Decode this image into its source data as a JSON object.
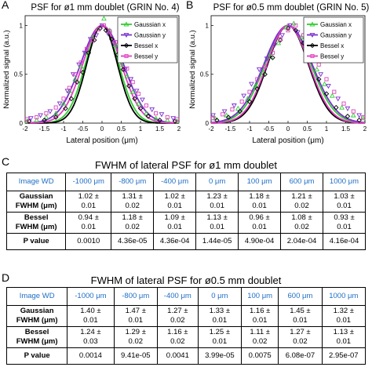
{
  "panels": {
    "a": "A",
    "b": "B",
    "c": "C",
    "d": "D"
  },
  "colors": {
    "gaussian_x": "#33cc33",
    "gaussian_y": "#7b2fd0",
    "bessel_x": "#000000",
    "bessel_y": "#e040c0",
    "header_blue": "#1f6fc5"
  },
  "chart_data": [
    {
      "type": "scatter",
      "title": "PSF for ø1 mm doublet (GRIN No. 4)",
      "xlabel": "Lateral position (μm)",
      "ylabel": "Normalized signal (a.u.)",
      "xlim": [
        -2,
        2
      ],
      "ylim": [
        0,
        1.1
      ],
      "xticks": [
        "-2",
        "-1.5",
        "-1",
        "-0.5",
        "0",
        "0.5",
        "1",
        "1.5",
        "2"
      ],
      "yticks": [
        "0",
        "0.5",
        "1"
      ],
      "fwhm": {
        "gaussian_x": 1.02,
        "gaussian_y": 1.31,
        "bessel_x": 0.94,
        "bessel_y": 1.18
      },
      "legend": {
        "placement": "top-right",
        "entries": [
          "Gaussian x",
          "Gaussian y",
          "Bessel x",
          "Bessel y"
        ]
      },
      "series": [
        {
          "name": "Gaussian x",
          "marker": "triangle-up",
          "points": [
            [
              -1.95,
              0.02
            ],
            [
              -1.7,
              0.03
            ],
            [
              -1.45,
              0.06
            ],
            [
              -1.2,
              0.1
            ],
            [
              -1.0,
              0.2
            ],
            [
              -0.85,
              0.33
            ],
            [
              -0.7,
              0.45
            ],
            [
              -0.55,
              0.58
            ],
            [
              -0.4,
              0.72
            ],
            [
              -0.25,
              0.88
            ],
            [
              -0.1,
              0.96
            ],
            [
              0.05,
              1.07
            ],
            [
              0.2,
              0.95
            ],
            [
              0.35,
              0.8
            ],
            [
              0.5,
              0.6
            ],
            [
              0.65,
              0.48
            ],
            [
              0.8,
              0.32
            ],
            [
              0.95,
              0.2
            ],
            [
              1.15,
              0.1
            ],
            [
              1.4,
              0.05
            ],
            [
              1.7,
              0.03
            ],
            [
              1.95,
              0.02
            ]
          ]
        },
        {
          "name": "Gaussian y",
          "marker": "triangle-down",
          "points": [
            [
              -1.85,
              0.05
            ],
            [
              -1.6,
              0.08
            ],
            [
              -1.35,
              0.12
            ],
            [
              -1.1,
              0.2
            ],
            [
              -0.9,
              0.33
            ],
            [
              -0.75,
              0.5
            ],
            [
              -0.6,
              0.6
            ],
            [
              -0.45,
              0.72
            ],
            [
              -0.3,
              0.86
            ],
            [
              -0.15,
              0.9
            ],
            [
              0.0,
              1.0
            ],
            [
              0.15,
              0.92
            ],
            [
              0.3,
              0.82
            ],
            [
              0.45,
              0.7
            ],
            [
              0.6,
              0.55
            ],
            [
              0.75,
              0.45
            ],
            [
              0.9,
              0.33
            ],
            [
              1.05,
              0.24
            ],
            [
              1.3,
              0.14
            ],
            [
              1.55,
              0.09
            ],
            [
              1.85,
              0.05
            ]
          ]
        },
        {
          "name": "Bessel x",
          "marker": "diamond",
          "points": [
            [
              -1.9,
              0.02
            ],
            [
              -1.5,
              0.03
            ],
            [
              -1.2,
              0.06
            ],
            [
              -0.95,
              0.15
            ],
            [
              -0.8,
              0.25
            ],
            [
              -0.65,
              0.42
            ],
            [
              -0.5,
              0.52
            ],
            [
              -0.35,
              0.72
            ],
            [
              -0.2,
              0.85
            ],
            [
              -0.05,
              0.97
            ],
            [
              0.1,
              0.95
            ],
            [
              0.25,
              0.86
            ],
            [
              0.4,
              0.7
            ],
            [
              0.55,
              0.55
            ],
            [
              0.7,
              0.38
            ],
            [
              0.85,
              0.25
            ],
            [
              1.0,
              0.15
            ],
            [
              1.2,
              0.07
            ],
            [
              1.5,
              0.03
            ],
            [
              1.9,
              0.02
            ]
          ]
        },
        {
          "name": "Bessel y",
          "marker": "square",
          "points": [
            [
              -1.95,
              0.04
            ],
            [
              -1.7,
              0.06
            ],
            [
              -1.45,
              0.1
            ],
            [
              -1.2,
              0.16
            ],
            [
              -1.0,
              0.25
            ],
            [
              -0.85,
              0.36
            ],
            [
              -0.7,
              0.5
            ],
            [
              -0.55,
              0.62
            ],
            [
              -0.4,
              0.76
            ],
            [
              -0.25,
              0.85
            ],
            [
              -0.1,
              0.96
            ],
            [
              0.05,
              1.0
            ],
            [
              0.2,
              0.94
            ],
            [
              0.35,
              0.83
            ],
            [
              0.5,
              0.7
            ],
            [
              0.65,
              0.56
            ],
            [
              0.8,
              0.42
            ],
            [
              0.95,
              0.3
            ],
            [
              1.15,
              0.18
            ],
            [
              1.4,
              0.1
            ],
            [
              1.7,
              0.06
            ],
            [
              1.95,
              0.04
            ]
          ]
        }
      ]
    },
    {
      "type": "scatter",
      "title": "PSF for ø0.5 mm doublet (GRIN No. 5)",
      "xlabel": "Lateral position (μm)",
      "ylabel": "Normalized signal (a.u.)",
      "xlim": [
        -2,
        2
      ],
      "ylim": [
        0,
        1.1
      ],
      "xticks": [
        "-2",
        "-1.5",
        "-1",
        "-0.5",
        "0",
        "0.5",
        "1",
        "1.5",
        "2"
      ],
      "yticks": [
        "0",
        "0.5",
        "1"
      ],
      "fwhm": {
        "gaussian_x": 1.4,
        "gaussian_y": 1.47,
        "bessel_x": 1.24,
        "bessel_y": 1.29
      },
      "legend": {
        "placement": "top-right",
        "entries": [
          "Gaussian x",
          "Gaussian y",
          "Bessel x",
          "Bessel y"
        ]
      },
      "series": [
        {
          "name": "Gaussian x",
          "marker": "triangle-up",
          "points": [
            [
              -1.9,
              0.05
            ],
            [
              -1.6,
              0.08
            ],
            [
              -1.3,
              0.15
            ],
            [
              -1.05,
              0.25
            ],
            [
              -0.85,
              0.38
            ],
            [
              -0.65,
              0.52
            ],
            [
              -0.45,
              0.68
            ],
            [
              -0.25,
              0.82
            ],
            [
              -0.05,
              0.98
            ],
            [
              0.15,
              1.02
            ],
            [
              0.35,
              0.88
            ],
            [
              0.55,
              0.72
            ],
            [
              0.75,
              0.55
            ],
            [
              0.95,
              0.4
            ],
            [
              1.15,
              0.28
            ],
            [
              1.4,
              0.16
            ],
            [
              1.7,
              0.08
            ],
            [
              1.95,
              0.05
            ]
          ]
        },
        {
          "name": "Gaussian y",
          "marker": "triangle-down",
          "points": [
            [
              -1.95,
              0.08
            ],
            [
              -1.65,
              0.12
            ],
            [
              -1.4,
              0.18
            ],
            [
              -1.15,
              0.28
            ],
            [
              -0.95,
              0.4
            ],
            [
              -0.75,
              0.55
            ],
            [
              -0.55,
              0.66
            ],
            [
              -0.35,
              0.8
            ],
            [
              -0.15,
              0.9
            ],
            [
              0.05,
              1.0
            ],
            [
              0.25,
              0.93
            ],
            [
              0.45,
              0.8
            ],
            [
              0.65,
              0.66
            ],
            [
              0.85,
              0.5
            ],
            [
              1.05,
              0.38
            ],
            [
              1.3,
              0.25
            ],
            [
              1.55,
              0.15
            ],
            [
              1.85,
              0.08
            ]
          ]
        },
        {
          "name": "Bessel x",
          "marker": "diamond",
          "points": [
            [
              -1.85,
              0.03
            ],
            [
              -1.55,
              0.06
            ],
            [
              -1.25,
              0.12
            ],
            [
              -1.0,
              0.22
            ],
            [
              -0.8,
              0.35
            ],
            [
              -0.6,
              0.5
            ],
            [
              -0.4,
              0.67
            ],
            [
              -0.2,
              0.85
            ],
            [
              0.0,
              0.97
            ],
            [
              0.2,
              0.95
            ],
            [
              0.4,
              0.82
            ],
            [
              0.6,
              0.64
            ],
            [
              0.8,
              0.45
            ],
            [
              1.0,
              0.3
            ],
            [
              1.25,
              0.16
            ],
            [
              1.55,
              0.07
            ],
            [
              1.85,
              0.03
            ]
          ]
        },
        {
          "name": "Bessel y",
          "marker": "square",
          "points": [
            [
              -1.95,
              0.05
            ],
            [
              -1.7,
              0.09
            ],
            [
              -1.45,
              0.14
            ],
            [
              -1.2,
              0.22
            ],
            [
              -1.0,
              0.32
            ],
            [
              -0.8,
              0.45
            ],
            [
              -0.6,
              0.58
            ],
            [
              -0.4,
              0.72
            ],
            [
              -0.2,
              0.86
            ],
            [
              0.0,
              0.95
            ],
            [
              0.2,
              1.0
            ],
            [
              0.4,
              0.9
            ],
            [
              0.6,
              0.76
            ],
            [
              0.8,
              0.6
            ],
            [
              1.0,
              0.45
            ],
            [
              1.2,
              0.32
            ],
            [
              1.45,
              0.2
            ],
            [
              1.7,
              0.12
            ],
            [
              1.95,
              0.06
            ]
          ]
        }
      ]
    },
    {
      "type": "table",
      "title": "FWHM of lateral PSF for ø1 mm doublet",
      "columns": [
        "Image WD",
        "-1000 μm",
        "-800 μm",
        "-400 μm",
        "0 μm",
        "100 μm",
        "600 μm",
        "1000 μm"
      ],
      "rows": [
        {
          "label": [
            "Gaussian",
            "FWHM (μm)"
          ],
          "values": [
            [
              "1.02 ±",
              "0.01"
            ],
            [
              "1.31 ±",
              "0.02"
            ],
            [
              "1.02 ±",
              "0.01"
            ],
            [
              "1.23 ±",
              "0.01"
            ],
            [
              "1.18 ±",
              "0.01"
            ],
            [
              "1.21 ±",
              "0.02"
            ],
            [
              "1.03 ±",
              "0.01"
            ]
          ]
        },
        {
          "label": [
            "Bessel",
            "FWHM (μm)"
          ],
          "values": [
            [
              "0.94 ±",
              "0.01"
            ],
            [
              "1.18 ±",
              "0.02"
            ],
            [
              "1.09 ±",
              "0.01"
            ],
            [
              "1.13 ±",
              "0.01"
            ],
            [
              "0.96 ±",
              "0.01"
            ],
            [
              "1.08 ±",
              "0.02"
            ],
            [
              "0.93 ±",
              "0.01"
            ]
          ]
        },
        {
          "label": [
            "P value"
          ],
          "values": [
            [
              "0.0010"
            ],
            [
              "4.36e-05"
            ],
            [
              "4.36e-04"
            ],
            [
              "1.44e-05"
            ],
            [
              "4.90e-04"
            ],
            [
              "2.04e-04"
            ],
            [
              "4.16e-04"
            ]
          ]
        }
      ]
    },
    {
      "type": "table",
      "title": "FWHM of lateral PSF for ø0.5 mm doublet",
      "columns": [
        "Image WD",
        "-1000 μm",
        "-800 μm",
        "-400 μm",
        "0 μm",
        "100 μm",
        "600 μm",
        "1000 μm"
      ],
      "rows": [
        {
          "label": [
            "Gaussian",
            "FWHM (μm)"
          ],
          "values": [
            [
              "1.40 ±",
              "0.01"
            ],
            [
              "1.47 ±",
              "0.01"
            ],
            [
              "1.27 ±",
              "0.02"
            ],
            [
              "1.33 ±",
              "0.01"
            ],
            [
              "1.16 ±",
              "0.01"
            ],
            [
              "1.45 ±",
              "0.01"
            ],
            [
              "1.32 ±",
              "0.01"
            ]
          ]
        },
        {
          "label": [
            "Bessel",
            "FWHM (μm)"
          ],
          "values": [
            [
              "1.24 ±",
              "0.03"
            ],
            [
              "1.29 ±",
              "0.02"
            ],
            [
              "1.16 ±",
              "0.02"
            ],
            [
              "1.25 ±",
              "0.01"
            ],
            [
              "1.11 ±",
              "0.02"
            ],
            [
              "1.27 ±",
              "0.02"
            ],
            [
              "1.13 ±",
              "0.01"
            ]
          ]
        },
        {
          "label": [
            "P value"
          ],
          "values": [
            [
              "0.0014"
            ],
            [
              "9.41e-05"
            ],
            [
              "0.0041"
            ],
            [
              "3.99e-05"
            ],
            [
              "0.0075"
            ],
            [
              "6.08e-07"
            ],
            [
              "2.95e-07"
            ]
          ]
        }
      ]
    }
  ]
}
